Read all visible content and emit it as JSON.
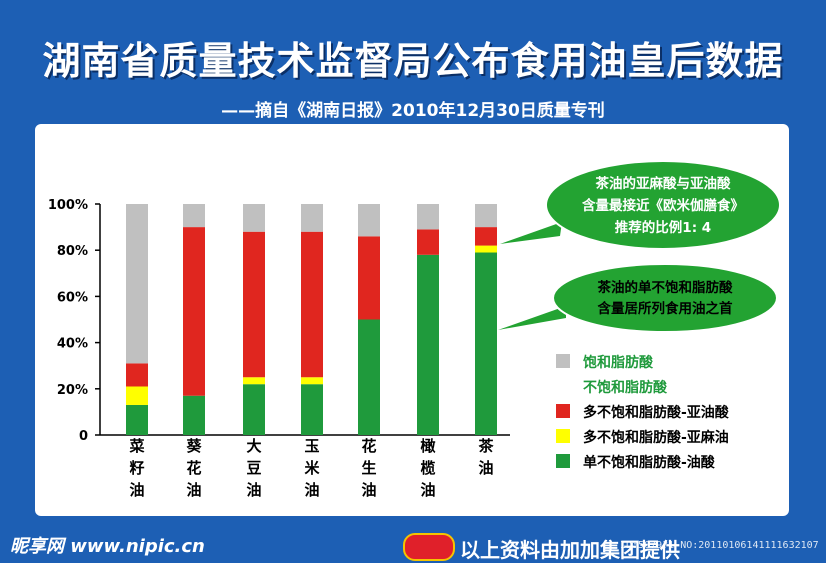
{
  "header": {
    "title": "湖南省质量技术监督局公布食用油皇后数据",
    "subtitle": "——摘自《湖南日报》2010年12月30日质量专刊"
  },
  "callouts": {
    "top": [
      "茶油的亚麻酸与亚油酸",
      "含量最接近《欧米伽膳食》",
      "推荐的比例1: 4"
    ],
    "middle": [
      "茶油的单不饱和脂肪酸",
      "含量居所列食用油之首"
    ]
  },
  "footer": {
    "site": "昵享网 www.nipic.cn",
    "provider": "以上资料由加加集团提供",
    "watermark": "ID:5079?1 NO:20110106141111632107"
  },
  "colors": {
    "saturated": "#c0c0c0",
    "linoleic": "#e0261f",
    "linolenic": "#ffff00",
    "oleic": "#1f9a3c",
    "bubble": "#23a332"
  },
  "chart_data": {
    "type": "bar",
    "stacked": true,
    "categories": [
      "菜籽油",
      "葵花油",
      "大豆油",
      "玉米油",
      "花生油",
      "橄榄油",
      "茶油"
    ],
    "yticks": [
      "0",
      "20%",
      "40%",
      "60%",
      "80%",
      "100%"
    ],
    "ylim": [
      0,
      100
    ],
    "legend_position": "right",
    "legend": [
      {
        "label": "饱和脂肪酸",
        "color": "#c0c0c0",
        "swatch": true
      },
      {
        "label": "不饱和脂肪酸",
        "color": null,
        "swatch": false
      },
      {
        "label": "多不饱和脂肪酸-亚油酸",
        "color": "#e0261f",
        "swatch": true
      },
      {
        "label": "多不饱和脂肪酸-亚麻油",
        "color": "#ffff00",
        "swatch": true
      },
      {
        "label": "单不饱和脂肪酸-油酸",
        "color": "#1f9a3c",
        "swatch": true
      }
    ],
    "series": [
      {
        "name": "单不饱和脂肪酸-油酸",
        "color": "#1f9a3c",
        "values": [
          13,
          17,
          22,
          22,
          50,
          78,
          79
        ]
      },
      {
        "name": "多不饱和脂肪酸-亚麻油",
        "color": "#ffff00",
        "values": [
          8,
          0,
          3,
          3,
          0,
          0,
          3
        ]
      },
      {
        "name": "多不饱和脂肪酸-亚油酸",
        "color": "#e0261f",
        "values": [
          10,
          73,
          63,
          63,
          36,
          11,
          8
        ]
      },
      {
        "name": "饱和脂肪酸",
        "color": "#c0c0c0",
        "values": [
          69,
          10,
          12,
          12,
          14,
          11,
          10
        ]
      }
    ]
  }
}
